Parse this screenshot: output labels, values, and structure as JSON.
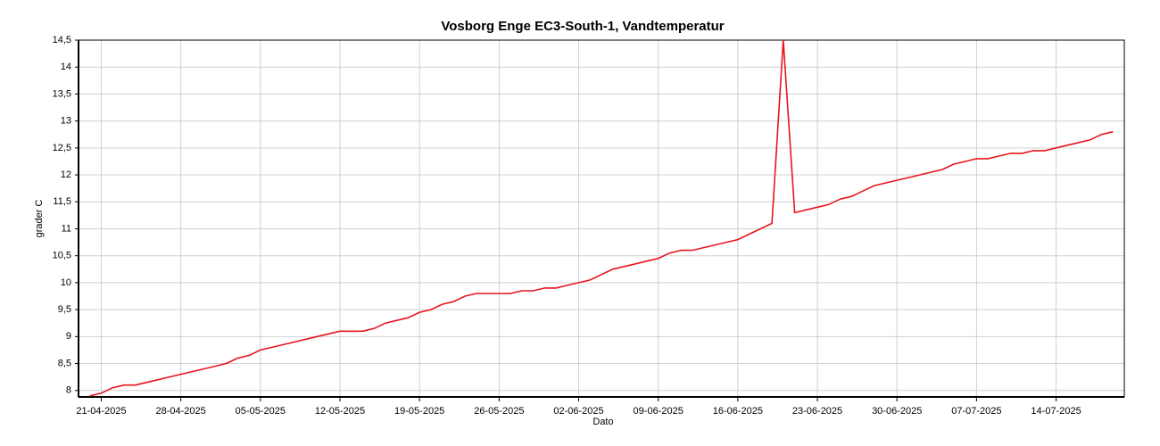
{
  "chart_data": {
    "type": "line",
    "title": "Vosborg Enge EC3-South-1, Vandtemperatur",
    "xlabel": "Dato",
    "ylabel": "grader C",
    "grid": true,
    "x": [
      "20-04-2025",
      "21-04-2025",
      "22-04-2025",
      "23-04-2025",
      "24-04-2025",
      "25-04-2025",
      "26-04-2025",
      "27-04-2025",
      "28-04-2025",
      "29-04-2025",
      "30-04-2025",
      "01-05-2025",
      "02-05-2025",
      "03-05-2025",
      "04-05-2025",
      "05-05-2025",
      "06-05-2025",
      "07-05-2025",
      "08-05-2025",
      "09-05-2025",
      "10-05-2025",
      "11-05-2025",
      "12-05-2025",
      "13-05-2025",
      "14-05-2025",
      "15-05-2025",
      "16-05-2025",
      "17-05-2025",
      "18-05-2025",
      "19-05-2025",
      "20-05-2025",
      "21-05-2025",
      "22-05-2025",
      "23-05-2025",
      "24-05-2025",
      "25-05-2025",
      "26-05-2025",
      "27-05-2025",
      "28-05-2025",
      "29-05-2025",
      "30-05-2025",
      "31-05-2025",
      "01-06-2025",
      "02-06-2025",
      "03-06-2025",
      "04-06-2025",
      "05-06-2025",
      "06-06-2025",
      "07-06-2025",
      "08-06-2025",
      "09-06-2025",
      "10-06-2025",
      "11-06-2025",
      "12-06-2025",
      "13-06-2025",
      "14-06-2025",
      "15-06-2025",
      "16-06-2025",
      "17-06-2025",
      "18-06-2025",
      "19-06-2025",
      "20-06-2025",
      "21-06-2025",
      "22-06-2025",
      "23-06-2025",
      "24-06-2025",
      "25-06-2025",
      "26-06-2025",
      "27-06-2025",
      "28-06-2025",
      "29-06-2025",
      "30-06-2025",
      "01-07-2025",
      "02-07-2025",
      "03-07-2025",
      "04-07-2025",
      "05-07-2025",
      "06-07-2025",
      "07-07-2025",
      "08-07-2025",
      "09-07-2025",
      "10-07-2025",
      "11-07-2025",
      "12-07-2025",
      "13-07-2025",
      "14-07-2025",
      "15-07-2025",
      "16-07-2025",
      "17-07-2025",
      "18-07-2025",
      "19-07-2025"
    ],
    "series": [
      {
        "name": "Vandtemperatur",
        "color": "#e8141c",
        "values": [
          7.9,
          7.95,
          8.05,
          8.1,
          8.1,
          8.15,
          8.2,
          8.25,
          8.3,
          8.35,
          8.4,
          8.45,
          8.5,
          8.6,
          8.65,
          8.75,
          8.8,
          8.85,
          8.9,
          8.95,
          9.0,
          9.05,
          9.1,
          9.1,
          9.1,
          9.15,
          9.25,
          9.3,
          9.35,
          9.45,
          9.5,
          9.6,
          9.65,
          9.75,
          9.8,
          9.8,
          9.8,
          9.8,
          9.85,
          9.85,
          9.9,
          9.9,
          9.95,
          10.0,
          10.05,
          10.15,
          10.25,
          10.3,
          10.35,
          10.4,
          10.45,
          10.55,
          10.6,
          10.6,
          10.65,
          10.7,
          10.75,
          10.8,
          10.9,
          11.0,
          11.1,
          14.5,
          11.3,
          11.35,
          11.4,
          11.45,
          11.55,
          11.6,
          11.7,
          11.8,
          11.85,
          11.9,
          11.95,
          12.0,
          12.05,
          12.1,
          12.2,
          12.25,
          12.3,
          12.3,
          12.35,
          12.4,
          12.4,
          12.45,
          12.45,
          12.5,
          12.55,
          12.6,
          12.65,
          12.75,
          12.8
        ]
      }
    ],
    "xlim": [
      "19-04-2025",
      "20-07-2025"
    ],
    "xticks": [
      "21-04-2025",
      "28-04-2025",
      "05-05-2025",
      "12-05-2025",
      "19-05-2025",
      "26-05-2025",
      "02-06-2025",
      "09-06-2025",
      "16-06-2025",
      "23-06-2025",
      "30-06-2025",
      "07-07-2025",
      "14-07-2025"
    ],
    "ylim": [
      7.88,
      14.5
    ],
    "yticks": [
      8,
      {
        "value": 8.5,
        "label": "8,5"
      },
      9,
      {
        "value": 9.5,
        "label": "9,5"
      },
      10,
      {
        "value": 10.5,
        "label": "10,5"
      },
      11,
      {
        "value": 11.5,
        "label": "11,5"
      },
      12,
      {
        "value": 12.5,
        "label": "12,5"
      },
      13,
      {
        "value": 13.5,
        "label": "13,5"
      },
      14,
      {
        "value": 14.5,
        "label": "14,5"
      }
    ]
  }
}
